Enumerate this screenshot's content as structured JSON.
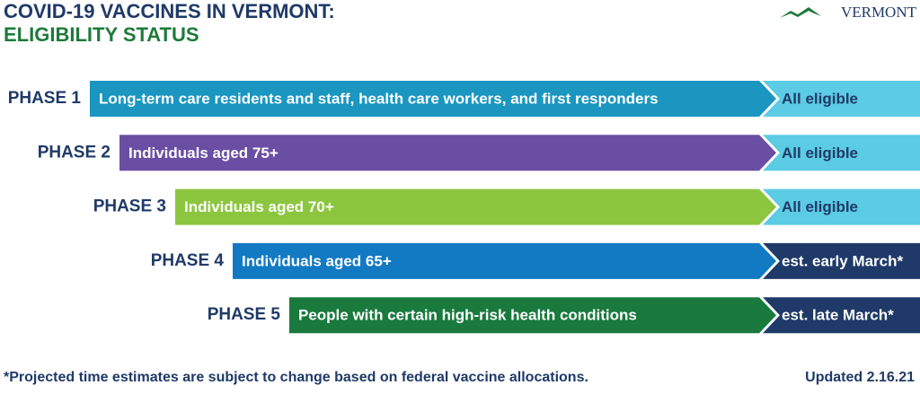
{
  "header": {
    "title_line1": "COVID-19 VACCINES IN VERMONT:",
    "title_line2": "ELIGIBILITY STATUS",
    "logo": "VERMONT"
  },
  "phases": [
    {
      "label": "PHASE 1",
      "description": "Long-term care residents and staff, health care workers, and first responders",
      "status": "All eligible",
      "color": "#1a96c0",
      "status_color": "#5ccbe4",
      "status_text_color": "#1f3a68"
    },
    {
      "label": "PHASE 2",
      "description": "Individuals aged 75+",
      "status": "All eligible",
      "color": "#6a4ea3",
      "status_color": "#5ccbe4",
      "status_text_color": "#1f3a68"
    },
    {
      "label": "PHASE 3",
      "description": "Individuals aged 70+",
      "status": "All eligible",
      "color": "#8cc63f",
      "status_color": "#5ccbe4",
      "status_text_color": "#1f3a68"
    },
    {
      "label": "PHASE 4",
      "description": "Individuals aged 65+",
      "status": "est. early March*",
      "color": "#1279c3",
      "status_color": "#1f3a68",
      "status_text_color": "#ffffff"
    },
    {
      "label": "PHASE 5",
      "description": "People with certain high-risk health conditions",
      "status": "est. late March*",
      "color": "#1a7a3e",
      "status_color": "#1f3a68",
      "status_text_color": "#ffffff"
    }
  ],
  "footer": {
    "note": "*Projected time estimates are subject to change based on federal vaccine allocations.",
    "updated": "Updated 2.16.21"
  }
}
